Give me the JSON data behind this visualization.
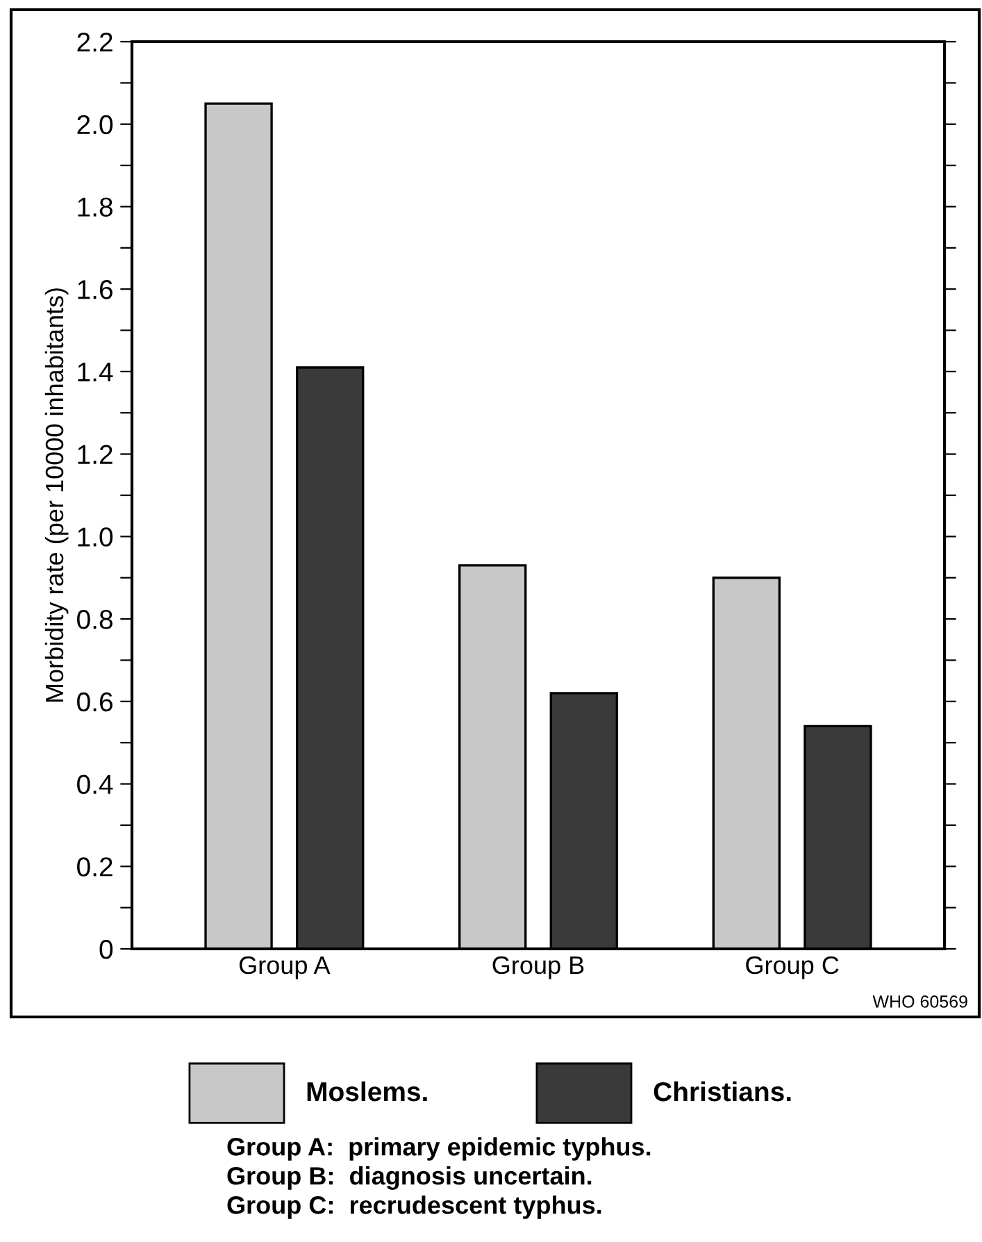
{
  "chart_data": {
    "type": "bar",
    "ylabel": "Morbidity rate (per 10000 inhabitants)",
    "categories": [
      "Group A",
      "Group B",
      "Group C"
    ],
    "series": [
      {
        "name": "Moslems.",
        "color": "#c8c8c8",
        "values": [
          2.05,
          0.93,
          0.9
        ]
      },
      {
        "name": "Christians.",
        "color": "#3a3a3a",
        "values": [
          1.41,
          0.62,
          0.54
        ]
      }
    ],
    "ylim": [
      0,
      2.2
    ],
    "yticks": [
      0,
      {
        "value": 0.1,
        "label": null
      },
      0.2,
      {
        "value": 0.3,
        "label": null
      },
      0.4,
      {
        "value": 0.5,
        "label": null
      },
      0.6,
      {
        "value": 0.7,
        "label": null
      },
      0.8,
      {
        "value": 0.9,
        "label": null
      },
      "1.0",
      {
        "value": 1.1,
        "label": null
      },
      1.2,
      {
        "value": 1.3,
        "label": null
      },
      1.4,
      {
        "value": 1.5,
        "label": null
      },
      1.6,
      {
        "value": 1.7,
        "label": null
      },
      1.8,
      {
        "value": 1.9,
        "label": null
      },
      "2.0",
      {
        "value": 2.1,
        "label": null
      },
      2.2
    ],
    "grid": false,
    "legend": "bottom",
    "annotations": [
      "WHO 60569",
      "Group A:  primary epidemic typhus.",
      "Group B:  diagnosis uncertain.",
      "Group C:  recrudescent typhus."
    ]
  }
}
